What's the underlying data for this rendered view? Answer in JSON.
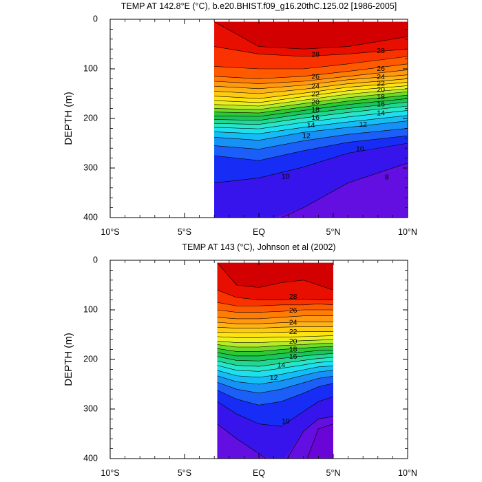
{
  "chart_data": [
    {
      "type": "contour",
      "title": "TEMP AT 142.8°E (°C), b.e20.BHIST.f09_g16.20thC.125.02 [1986-2005]",
      "ylabel": "DEPTH (m)",
      "xlim": [
        -10,
        10
      ],
      "ylim": [
        0,
        400
      ],
      "y_inverted": true,
      "x_ticks": [
        {
          "value": -10,
          "label": "10°S"
        },
        {
          "value": -5,
          "label": "5°S"
        },
        {
          "value": 0,
          "label": "EQ"
        },
        {
          "value": 5,
          "label": "5°N"
        },
        {
          "value": 10,
          "label": "10°N"
        }
      ],
      "y_ticks": [
        0,
        100,
        200,
        300,
        400
      ],
      "data_x_range": [
        -3,
        10
      ],
      "data_y_range": [
        5,
        400
      ],
      "contour_interval": 1,
      "x": [
        -3,
        0,
        3,
        6,
        10
      ],
      "isotherms": [
        {
          "level": 29,
          "depth": [
            5,
            55,
            60,
            55,
            35
          ]
        },
        {
          "level": 28,
          "depth": [
            55,
            70,
            75,
            70,
            60
          ]
        },
        {
          "level": 27,
          "depth": [
            95,
            100,
            100,
            90,
            75
          ]
        },
        {
          "level": 26,
          "depth": [
            115,
            120,
            115,
            105,
            90
          ]
        },
        {
          "level": 25,
          "depth": [
            125,
            130,
            125,
            115,
            102
          ]
        },
        {
          "level": 24,
          "depth": [
            135,
            140,
            133,
            122,
            112
          ]
        },
        {
          "level": 23,
          "depth": [
            145,
            150,
            141,
            130,
            120
          ]
        },
        {
          "level": 22,
          "depth": [
            155,
            160,
            149,
            137,
            127
          ]
        },
        {
          "level": 21,
          "depth": [
            164,
            168,
            156,
            144,
            134
          ]
        },
        {
          "level": 20,
          "depth": [
            172,
            175,
            163,
            151,
            140
          ]
        },
        {
          "level": 19,
          "depth": [
            180,
            182,
            170,
            158,
            146
          ]
        },
        {
          "level": 18,
          "depth": [
            187,
            189,
            177,
            165,
            153
          ]
        },
        {
          "level": 17,
          "depth": [
            195,
            196,
            184,
            172,
            160
          ]
        },
        {
          "level": 16,
          "depth": [
            202,
            204,
            191,
            180,
            167
          ]
        },
        {
          "level": 15,
          "depth": [
            210,
            212,
            199,
            188,
            175
          ]
        },
        {
          "level": 14,
          "depth": [
            218,
            221,
            208,
            197,
            184
          ]
        },
        {
          "level": 13,
          "depth": [
            227,
            231,
            218,
            207,
            194
          ]
        },
        {
          "level": 12,
          "depth": [
            238,
            244,
            228,
            218,
            205
          ]
        },
        {
          "level": 11,
          "depth": [
            255,
            262,
            245,
            232,
            220
          ]
        },
        {
          "level": 10,
          "depth": [
            275,
            285,
            265,
            248,
            235
          ]
        },
        {
          "level": 9,
          "depth": [
            330,
            320,
            298,
            270,
            250
          ]
        },
        {
          "level": 8,
          "depth": [
            420,
            420,
            380,
            330,
            290
          ]
        }
      ],
      "contour_labels": [
        {
          "text": "28",
          "x": 3.8,
          "y": 72
        },
        {
          "text": "28",
          "x": 8.2,
          "y": 64
        },
        {
          "text": "26",
          "x": 3.8,
          "y": 116
        },
        {
          "text": "26",
          "x": 8.2,
          "y": 100
        },
        {
          "text": "24",
          "x": 3.8,
          "y": 136
        },
        {
          "text": "24",
          "x": 8.2,
          "y": 117
        },
        {
          "text": "22",
          "x": 3.8,
          "y": 152
        },
        {
          "text": "22",
          "x": 8.2,
          "y": 130
        },
        {
          "text": "20",
          "x": 3.8,
          "y": 168
        },
        {
          "text": "20",
          "x": 8.2,
          "y": 143
        },
        {
          "text": "18",
          "x": 3.8,
          "y": 183
        },
        {
          "text": "18",
          "x": 8.2,
          "y": 157
        },
        {
          "text": "16",
          "x": 3.8,
          "y": 199
        },
        {
          "text": "16",
          "x": 8.2,
          "y": 172
        },
        {
          "text": "14",
          "x": 3.5,
          "y": 214
        },
        {
          "text": "14",
          "x": 8.2,
          "y": 190
        },
        {
          "text": "12",
          "x": 3.2,
          "y": 236
        },
        {
          "text": "12",
          "x": 7.0,
          "y": 213
        },
        {
          "text": "10",
          "x": 1.8,
          "y": 318
        },
        {
          "text": "10",
          "x": 6.8,
          "y": 262
        },
        {
          "text": "8",
          "x": 8.6,
          "y": 319
        }
      ]
    },
    {
      "type": "contour",
      "title": "TEMP AT 143 (°C), Johnson et al (2002)",
      "ylabel": "DEPTH (m)",
      "xlim": [
        -10,
        10
      ],
      "ylim": [
        0,
        400
      ],
      "y_inverted": true,
      "x_ticks": [
        {
          "value": -10,
          "label": "10°S"
        },
        {
          "value": -5,
          "label": "5°S"
        },
        {
          "value": 0,
          "label": "EQ"
        },
        {
          "value": 5,
          "label": "5°N"
        },
        {
          "value": 10,
          "label": "10°N"
        }
      ],
      "y_ticks": [
        0,
        100,
        200,
        300,
        400
      ],
      "data_x_range": [
        -2.8,
        5
      ],
      "data_y_range": [
        5,
        400
      ],
      "contour_interval": 1,
      "x": [
        -2.8,
        -1.5,
        0,
        1.5,
        3,
        4,
        5
      ],
      "isotherms": [
        {
          "level": 29,
          "depth": [
            5,
            50,
            55,
            45,
            40,
            50,
            60
          ]
        },
        {
          "level": 28,
          "depth": [
            60,
            75,
            80,
            80,
            78,
            80,
            80
          ]
        },
        {
          "level": 27,
          "depth": [
            85,
            92,
            92,
            90,
            90,
            88,
            90
          ]
        },
        {
          "level": 26,
          "depth": [
            100,
            105,
            105,
            103,
            100,
            100,
            100
          ]
        },
        {
          "level": 25,
          "depth": [
            115,
            118,
            118,
            115,
            112,
            112,
            112
          ]
        },
        {
          "level": 24,
          "depth": [
            125,
            128,
            128,
            126,
            124,
            124,
            124
          ]
        },
        {
          "level": 23,
          "depth": [
            135,
            137,
            137,
            135,
            134,
            134,
            134
          ]
        },
        {
          "level": 22,
          "depth": [
            145,
            146,
            146,
            145,
            144,
            144,
            144
          ]
        },
        {
          "level": 21,
          "depth": [
            154,
            156,
            156,
            155,
            154,
            153,
            152
          ]
        },
        {
          "level": 20,
          "depth": [
            163,
            166,
            166,
            164,
            162,
            161,
            160
          ]
        },
        {
          "level": 19,
          "depth": [
            170,
            175,
            175,
            172,
            170,
            168,
            167
          ]
        },
        {
          "level": 18,
          "depth": [
            178,
            184,
            184,
            180,
            177,
            175,
            174
          ]
        },
        {
          "level": 17,
          "depth": [
            186,
            193,
            193,
            188,
            185,
            182,
            181
          ]
        },
        {
          "level": 16,
          "depth": [
            194,
            202,
            203,
            198,
            193,
            190,
            188
          ]
        },
        {
          "level": 15,
          "depth": [
            203,
            212,
            214,
            208,
            202,
            198,
            196
          ]
        },
        {
          "level": 14,
          "depth": [
            212,
            222,
            224,
            218,
            211,
            206,
            204
          ]
        },
        {
          "level": 13,
          "depth": [
            222,
            233,
            236,
            230,
            221,
            215,
            213
          ]
        },
        {
          "level": 12,
          "depth": [
            233,
            245,
            250,
            243,
            232,
            225,
            222
          ]
        },
        {
          "level": 11,
          "depth": [
            246,
            260,
            268,
            260,
            247,
            238,
            234
          ]
        },
        {
          "level": 10,
          "depth": [
            262,
            280,
            292,
            285,
            268,
            255,
            248
          ]
        },
        {
          "level": 9,
          "depth": [
            285,
            310,
            330,
            335,
            305,
            285,
            275
          ]
        },
        {
          "level": 8,
          "depth": [
            330,
            360,
            390,
            420,
            345,
            320,
            315
          ]
        },
        {
          "level": 7,
          "depth": [
            420,
            420,
            420,
            420,
            420,
            340,
            330
          ]
        }
      ],
      "contour_labels": [
        {
          "text": "28",
          "x": 2.3,
          "y": 74
        },
        {
          "text": "26",
          "x": 2.3,
          "y": 102
        },
        {
          "text": "24",
          "x": 2.3,
          "y": 126
        },
        {
          "text": "22",
          "x": 2.3,
          "y": 145
        },
        {
          "text": "20",
          "x": 2.3,
          "y": 164
        },
        {
          "text": "18",
          "x": 2.3,
          "y": 180
        },
        {
          "text": "16",
          "x": 2.3,
          "y": 195
        },
        {
          "text": "14",
          "x": 1.5,
          "y": 212
        },
        {
          "text": "12",
          "x": 1.0,
          "y": 238
        },
        {
          "text": "10",
          "x": 1.8,
          "y": 325
        }
      ]
    }
  ]
}
